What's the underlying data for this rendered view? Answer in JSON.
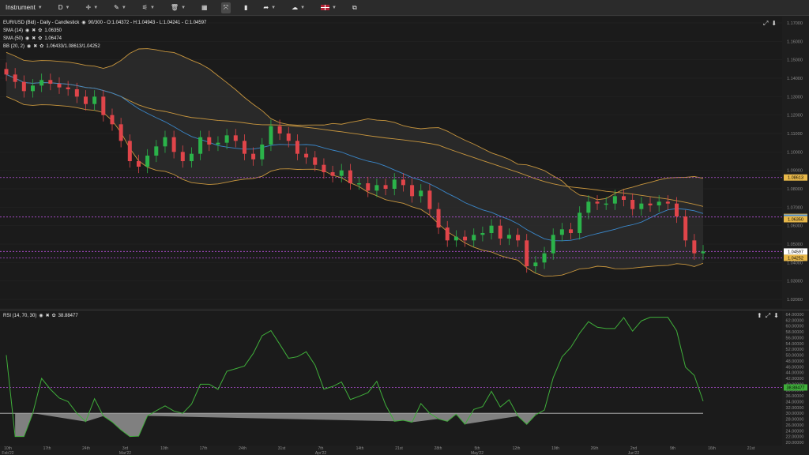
{
  "toolbar": {
    "instrument": "Instrument",
    "timeframe": "D",
    "items": [
      "crosshair-icon",
      "pen-icon",
      "indicator-icon",
      "trash-icon",
      "layout-icon",
      "fullscreen-icon",
      "bar-chart-icon",
      "share-icon",
      "weather-icon",
      "flag-icon",
      "external-icon"
    ]
  },
  "main_legend": {
    "symbol_line": "EUR/USD (Bid) - Daily - Candlestick",
    "ohlc": "90/300 - O:1.04372 - H:1.04943 - L:1.04241 - C:1.04597",
    "sma14": "SMA (14)",
    "sma14_val": "1.06350",
    "sma50": "SMA (50)",
    "sma50_val": "1.06474",
    "bb": "BB (20, 2)",
    "bb_val": "1.06433/1.08613/1.04252"
  },
  "rsi_legend": {
    "label": "RSI (14, 70, 30)",
    "value": "38.88477"
  },
  "price_axis": [
    "1.17000",
    "1.16000",
    "1.15000",
    "1.14000",
    "1.13000",
    "1.12000",
    "1.11000",
    "1.10000",
    "1.09000",
    "1.08000",
    "1.07000",
    "1.06000",
    "1.05000",
    "1.04000",
    "1.03000",
    "1.02000"
  ],
  "price_tags": {
    "bb_upper": "1.08613",
    "sma50": "1.06474",
    "bb_mid": "1.06433",
    "sma14": "1.06350",
    "last": "1.04597",
    "bb_lower": "1.04252"
  },
  "rsi_axis": [
    "64.00000",
    "62.00000",
    "60.00000",
    "58.00000",
    "56.00000",
    "54.00000",
    "52.00000",
    "50.00000",
    "48.00000",
    "46.00000",
    "44.00000",
    "42.00000",
    "40.00000",
    "38.00000",
    "36.00000",
    "34.00000",
    "32.00000",
    "30.00000",
    "28.00000",
    "26.00000",
    "24.00000",
    "22.00000",
    "20.00000"
  ],
  "rsi_tag": "38.88477",
  "time_axis": [
    {
      "top": "10th",
      "bottom": "Feb'22"
    },
    {
      "top": "17th",
      "bottom": ""
    },
    {
      "top": "24th",
      "bottom": ""
    },
    {
      "top": "3rd",
      "bottom": "Mar'22"
    },
    {
      "top": "10th",
      "bottom": ""
    },
    {
      "top": "17th",
      "bottom": ""
    },
    {
      "top": "24th",
      "bottom": ""
    },
    {
      "top": "31st",
      "bottom": ""
    },
    {
      "top": "7th",
      "bottom": "Apr'22"
    },
    {
      "top": "14th",
      "bottom": ""
    },
    {
      "top": "21st",
      "bottom": ""
    },
    {
      "top": "28th",
      "bottom": ""
    },
    {
      "top": "5th",
      "bottom": "May'22"
    },
    {
      "top": "12th",
      "bottom": ""
    },
    {
      "top": "19th",
      "bottom": ""
    },
    {
      "top": "26th",
      "bottom": ""
    },
    {
      "top": "2nd",
      "bottom": "Jun'22"
    },
    {
      "top": "9th",
      "bottom": ""
    },
    {
      "top": "16th",
      "bottom": ""
    },
    {
      "top": "21st",
      "bottom": ""
    }
  ],
  "colors": {
    "up": "#2bb34a",
    "down": "#e0454a",
    "sma14": "#3a86c8",
    "bands": "#c8963e",
    "rsi": "#3fae3a",
    "guide": "#b44fd8"
  },
  "chart_data": {
    "type": "candlestick",
    "closes": [
      1.142,
      1.138,
      1.133,
      1.136,
      1.139,
      1.137,
      1.135,
      1.134,
      1.13,
      1.126,
      1.13,
      1.12,
      1.115,
      1.106,
      1.095,
      1.092,
      1.098,
      1.103,
      1.108,
      1.1,
      1.095,
      1.099,
      1.108,
      1.104,
      1.105,
      1.109,
      1.106,
      1.099,
      1.096,
      1.104,
      1.114,
      1.11,
      1.106,
      1.099,
      1.097,
      1.093,
      1.089,
      1.087,
      1.09,
      1.083,
      1.083,
      1.079,
      1.082,
      1.08,
      1.085,
      1.082,
      1.076,
      1.079,
      1.069,
      1.059,
      1.052,
      1.054,
      1.052,
      1.055,
      1.056,
      1.06,
      1.053,
      1.055,
      1.052,
      1.038,
      1.04,
      1.045,
      1.055,
      1.058,
      1.056,
      1.067,
      1.073,
      1.072,
      1.072,
      1.076,
      1.074,
      1.069,
      1.072,
      1.071,
      1.073,
      1.072,
      1.065,
      1.052,
      1.045,
      1.046
    ]
  }
}
